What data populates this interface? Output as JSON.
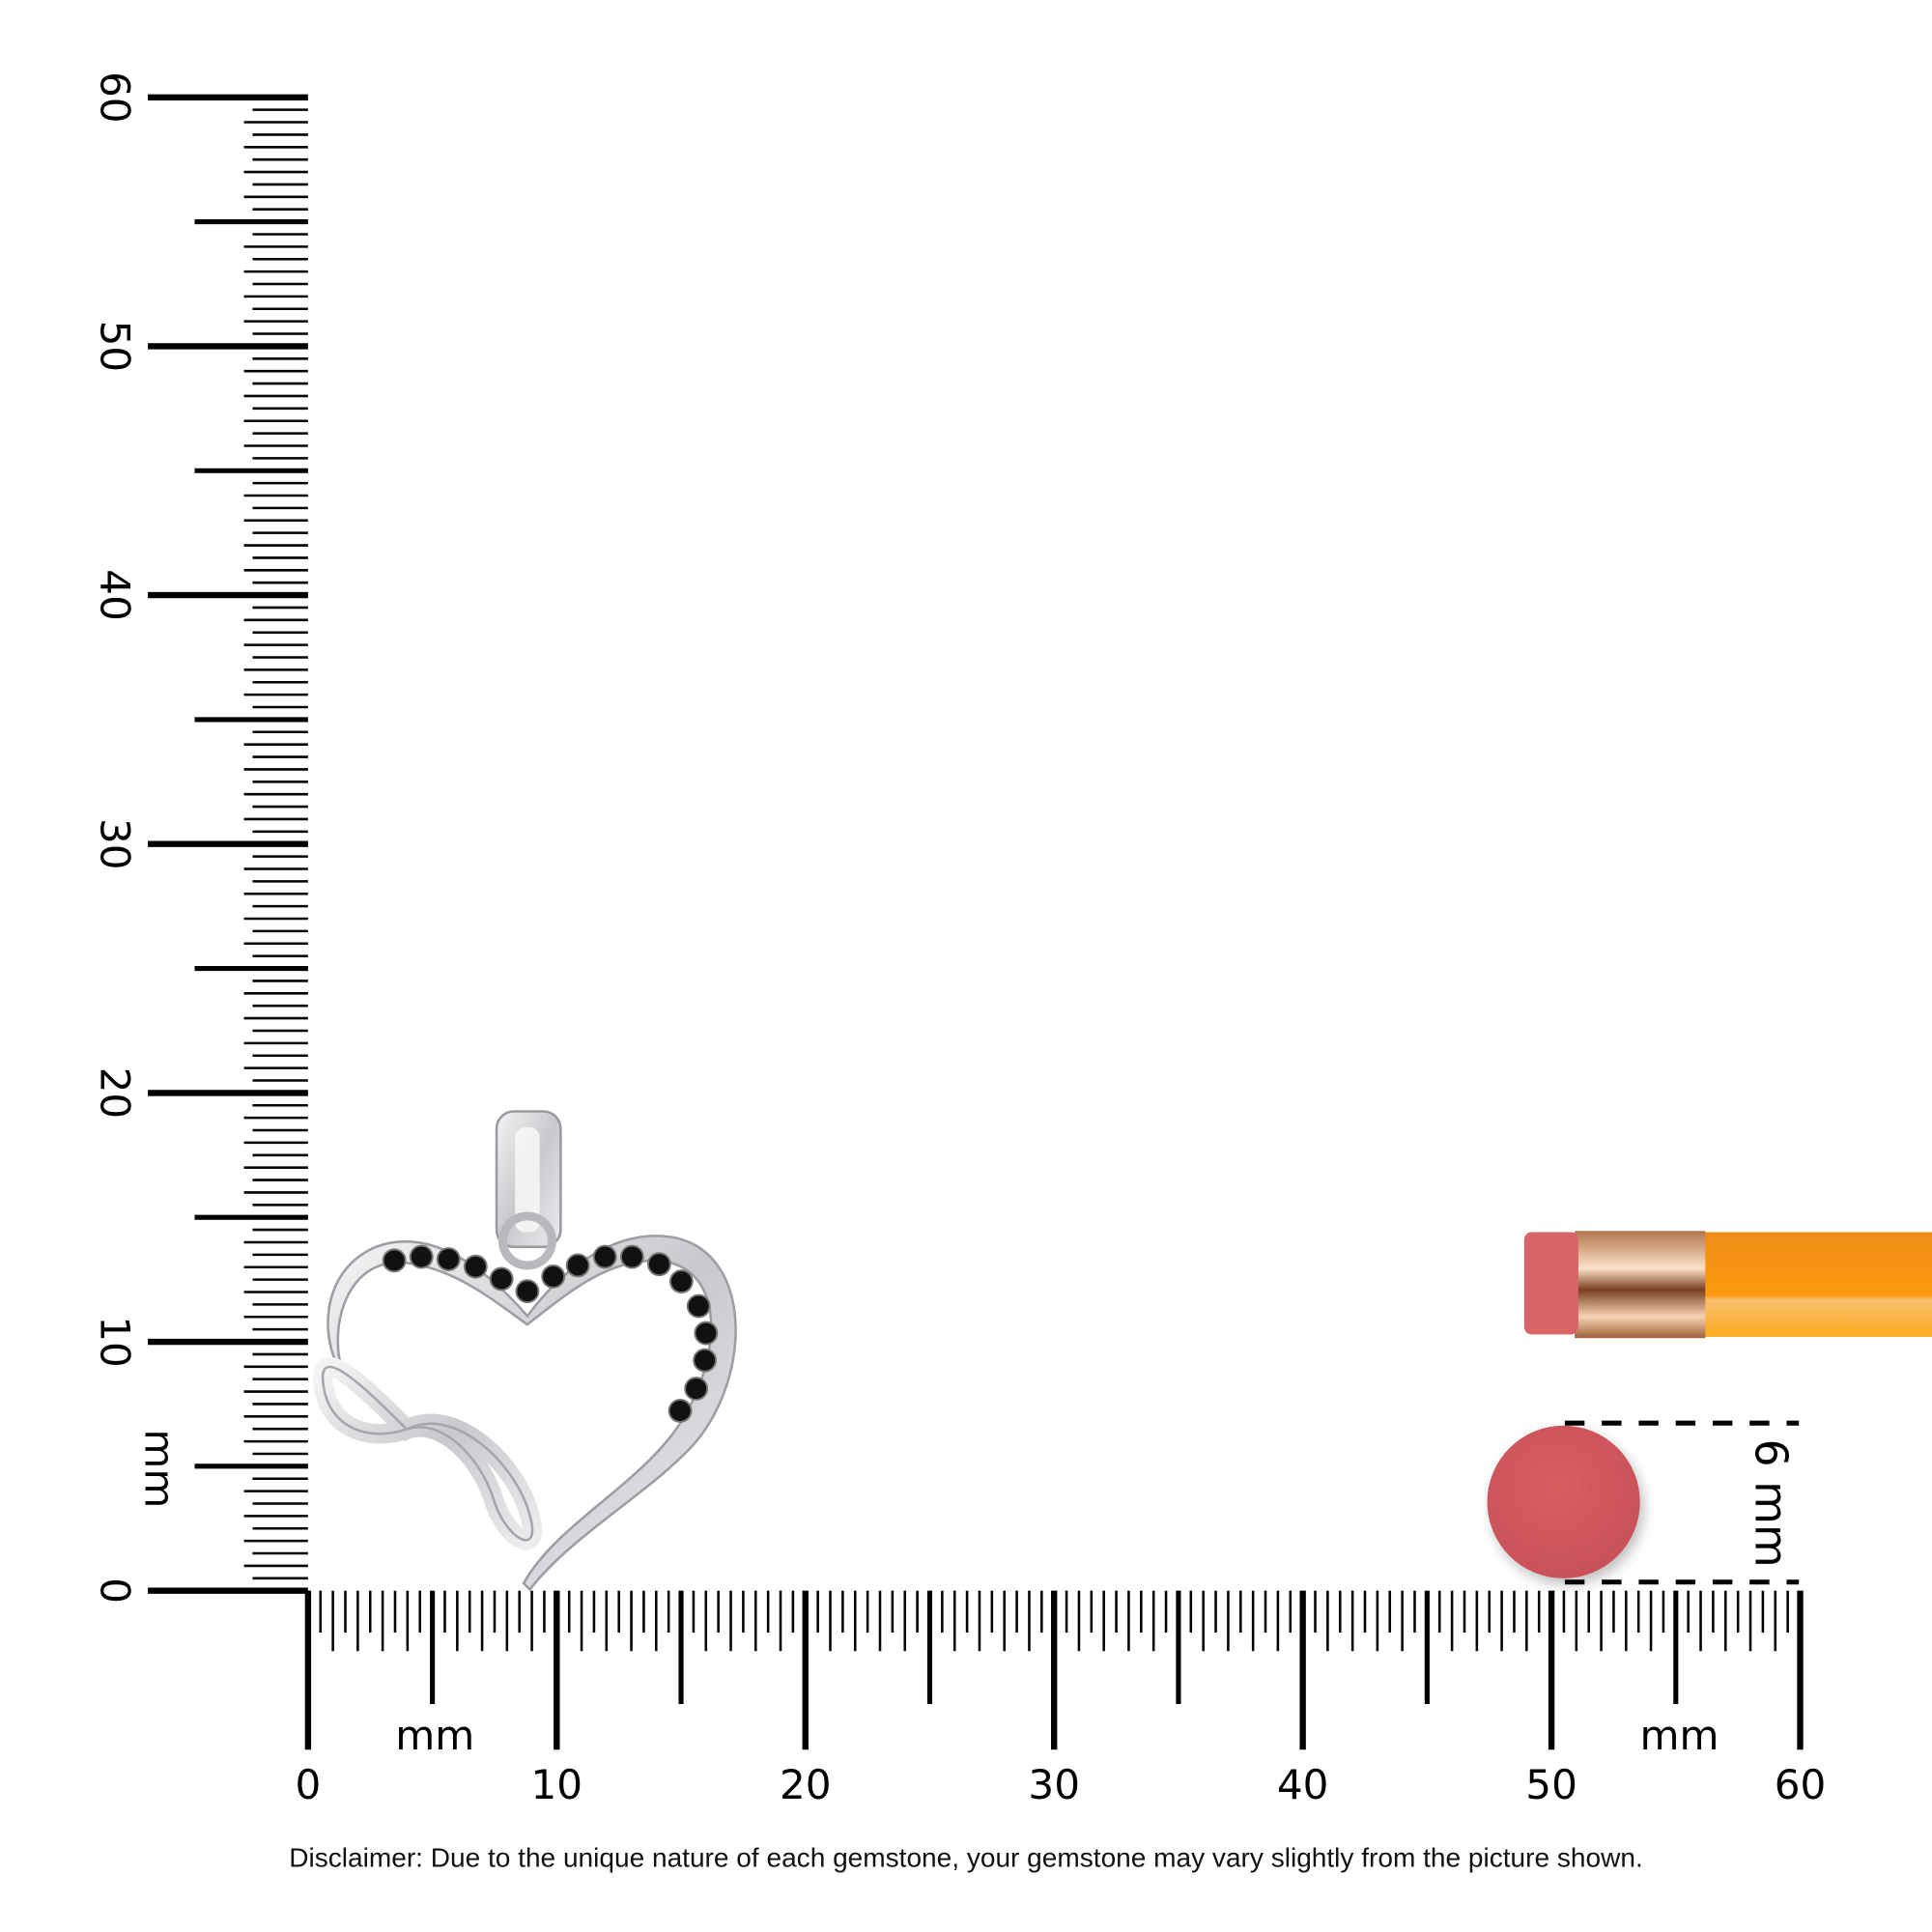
{
  "rulers": {
    "unit_label": "mm",
    "vertical_labels": [
      "0",
      "10",
      "20",
      "30",
      "40",
      "50",
      "60"
    ],
    "horizontal_labels": [
      "0",
      "10",
      "20",
      "30",
      "40",
      "50",
      "60"
    ],
    "max_mm": 60
  },
  "reference": {
    "eraser_size_label": "6 mm",
    "eraser_color": "#d35a5c",
    "pencil_color": "#f7941d"
  },
  "product": {
    "name_icon": "heart-infinity-pendant",
    "stone_color": "#111111",
    "metal_color": "#d9d9dc"
  },
  "disclaimer": "Disclaimer: Due to the unique nature of each gemstone, your gemstone may vary slightly from the picture shown."
}
